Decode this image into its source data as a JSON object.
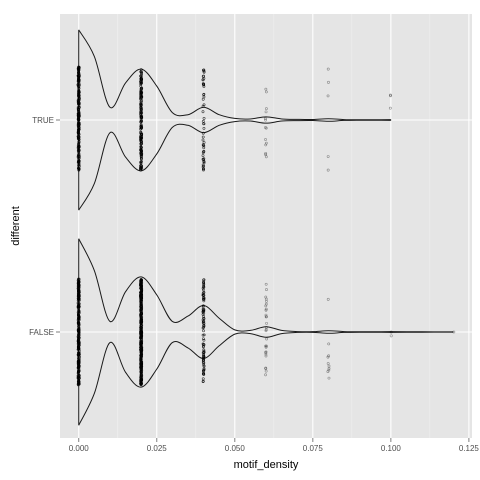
{
  "chart_data": {
    "type": "violin",
    "orientation": "horizontal",
    "xlabel": "motif_density",
    "ylabel": "different",
    "xlim": [
      -0.006,
      0.126
    ],
    "x_ticks": [
      0.0,
      0.025,
      0.05,
      0.075,
      0.1,
      0.125
    ],
    "x_tick_labels": [
      "0.000",
      "0.025",
      "0.050",
      "0.075",
      "0.100",
      "0.125"
    ],
    "categories": [
      "TRUE",
      "FALSE"
    ],
    "grid": true,
    "colors": {
      "panel": "#e5e5e5",
      "grid_major": "#ffffff",
      "grid_minor": "#f0f0f0",
      "violin_line": "#1a1a1a",
      "points": "#000000"
    },
    "groups": [
      {
        "category": "TRUE",
        "violin_halfwidth": [
          [
            0.0,
            0.85
          ],
          [
            0.005,
            0.6
          ],
          [
            0.01,
            0.12
          ],
          [
            0.015,
            0.35
          ],
          [
            0.02,
            0.48
          ],
          [
            0.025,
            0.32
          ],
          [
            0.03,
            0.07
          ],
          [
            0.035,
            0.05
          ],
          [
            0.04,
            0.12
          ],
          [
            0.045,
            0.05
          ],
          [
            0.05,
            0.015
          ],
          [
            0.055,
            0.01
          ],
          [
            0.06,
            0.03
          ],
          [
            0.065,
            0.01
          ],
          [
            0.07,
            0.006
          ],
          [
            0.075,
            0.005
          ],
          [
            0.08,
            0.012
          ],
          [
            0.085,
            0.004
          ],
          [
            0.09,
            0.002
          ],
          [
            0.095,
            0.002
          ],
          [
            0.1,
            0.003
          ]
        ],
        "point_columns": [
          {
            "x": 0.0,
            "count": 240,
            "spread": 0.5
          },
          {
            "x": 0.02,
            "count": 180,
            "spread": 0.48
          },
          {
            "x": 0.04,
            "count": 50,
            "spread": 0.48
          },
          {
            "x": 0.06,
            "count": 14,
            "spread": 0.4
          },
          {
            "x": 0.08,
            "count": 5,
            "spread": 0.5
          },
          {
            "x": 0.1,
            "count": 3,
            "spread": 0.3
          }
        ]
      },
      {
        "category": "FALSE",
        "violin_halfwidth": [
          [
            0.0,
            0.88
          ],
          [
            0.005,
            0.58
          ],
          [
            0.01,
            0.1
          ],
          [
            0.015,
            0.38
          ],
          [
            0.02,
            0.52
          ],
          [
            0.025,
            0.35
          ],
          [
            0.03,
            0.1
          ],
          [
            0.035,
            0.15
          ],
          [
            0.04,
            0.25
          ],
          [
            0.045,
            0.13
          ],
          [
            0.05,
            0.02
          ],
          [
            0.055,
            0.015
          ],
          [
            0.06,
            0.05
          ],
          [
            0.065,
            0.015
          ],
          [
            0.07,
            0.004
          ],
          [
            0.075,
            0.003
          ],
          [
            0.08,
            0.012
          ],
          [
            0.085,
            0.004
          ],
          [
            0.09,
            0.002
          ],
          [
            0.1,
            0.003
          ],
          [
            0.11,
            0.002
          ],
          [
            0.12,
            0.001
          ]
        ],
        "point_columns": [
          {
            "x": 0.0,
            "count": 300,
            "spread": 0.5
          },
          {
            "x": 0.02,
            "count": 400,
            "spread": 0.5
          },
          {
            "x": 0.04,
            "count": 90,
            "spread": 0.5
          },
          {
            "x": 0.06,
            "count": 28,
            "spread": 0.48
          },
          {
            "x": 0.08,
            "count": 10,
            "spread": 0.45
          },
          {
            "x": 0.1,
            "count": 2,
            "spread": 0.1
          },
          {
            "x": 0.12,
            "count": 1,
            "spread": 0.0
          }
        ]
      }
    ]
  }
}
